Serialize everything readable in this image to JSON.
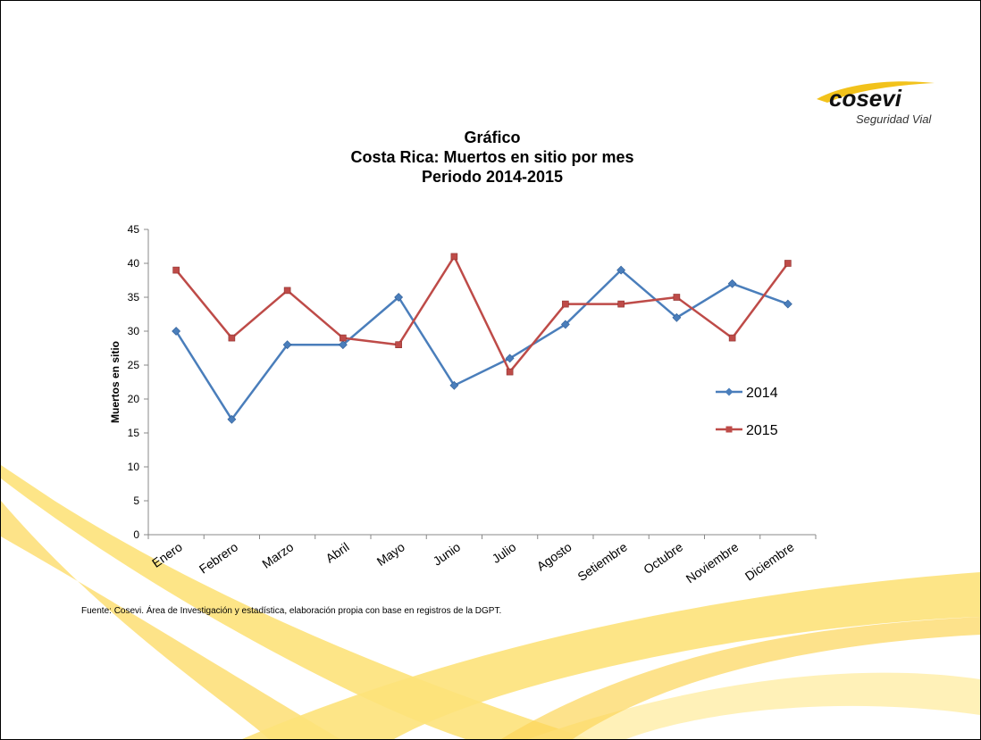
{
  "logo": {
    "brand": "cosevi",
    "tagline": "Seguridad Vial"
  },
  "title_lines": [
    "Gráfico",
    "Costa Rica: Muertos en sitio por mes",
    "Periodo  2014-2015"
  ],
  "source_note": "Fuente: Cosevi. Área de Investigación y estadística, elaboración propia con base en registros de la DGPT.",
  "colors": {
    "series_2014": "#4a7ebb",
    "series_2015": "#be4b48",
    "wave": "#fde27a"
  },
  "chart_data": {
    "type": "line",
    "title": "Gráfico Costa Rica: Muertos en sitio por mes Periodo  2014-2015",
    "xlabel": "",
    "ylabel": "Muertos en sitio",
    "ylim": [
      0,
      45
    ],
    "yticks": [
      0,
      5,
      10,
      15,
      20,
      25,
      30,
      35,
      40,
      45
    ],
    "grid": false,
    "legend": "right",
    "categories": [
      "Enero",
      "Febrero",
      "Marzo",
      "Abril",
      "Mayo",
      "Junio",
      "Julio",
      "Agosto",
      "Setiembre",
      "Octubre",
      "Noviembre",
      "Diciembre"
    ],
    "series": [
      {
        "name": "2014",
        "marker": "diamond",
        "color": "#4a7ebb",
        "values": [
          30,
          17,
          28,
          28,
          35,
          22,
          26,
          31,
          39,
          32,
          37,
          34
        ]
      },
      {
        "name": "2015",
        "marker": "square",
        "color": "#be4b48",
        "values": [
          39,
          29,
          36,
          29,
          28,
          41,
          24,
          34,
          34,
          35,
          29,
          40
        ]
      }
    ]
  }
}
